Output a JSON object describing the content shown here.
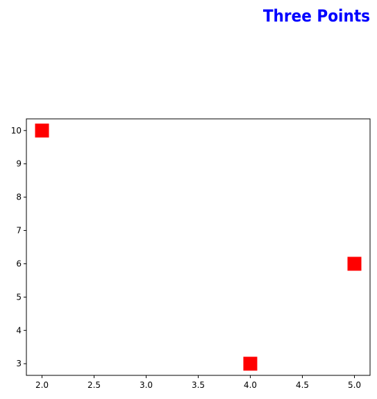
{
  "chart_data": {
    "type": "scatter",
    "title": "Three Points",
    "xlabel": "",
    "ylabel": "",
    "xlim": [
      1.85,
      5.15
    ],
    "ylim": [
      2.65,
      10.35
    ],
    "x_ticks": [
      "2.0",
      "2.5",
      "3.0",
      "3.5",
      "4.0",
      "4.5",
      "5.0"
    ],
    "y_ticks": [
      "3",
      "4",
      "5",
      "6",
      "7",
      "8",
      "9",
      "10"
    ],
    "points": [
      {
        "x": 2,
        "y": 10
      },
      {
        "x": 4,
        "y": 3
      },
      {
        "x": 5,
        "y": 6
      }
    ],
    "marker": "square",
    "grid": false,
    "colors": {
      "marker": "#ff0000",
      "title": "#0000ff",
      "axes": "#000000"
    }
  }
}
